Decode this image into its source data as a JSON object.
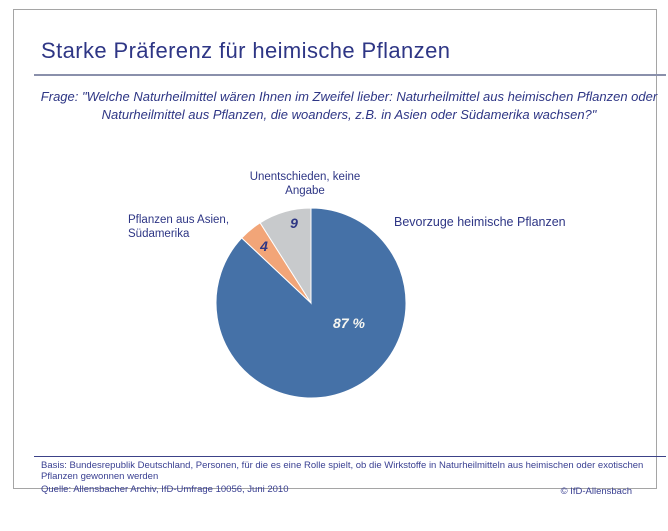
{
  "slide": {
    "title": "Starke Präferenz für heimische Pflanzen",
    "question": "Frage: \"Welche Naturheilmittel wären Ihnen im Zweifel lieber: Naturheilmittel aus heimischen Pflanzen oder Naturheilmittel aus Pflanzen, die woanders, z.B. in Asien oder Südamerika wachsen?\"",
    "footer": {
      "basis": "Basis: Bundesrepublik Deutschland, Personen, für die es eine Rolle spielt, ob die Wirkstoffe in Naturheilmitteln aus heimischen oder exotischen Pflanzen gewonnen werden",
      "source": "Quelle: Allensbacher Archiv, IfD-Umfrage 10056, Juni 2010",
      "copyright": "© IfD-Allensbach"
    }
  },
  "chart_data": {
    "type": "pie",
    "title": "Starke Präferenz für heimische Pflanzen",
    "unit": "percent",
    "total": 100,
    "start_angle_deg": 0,
    "direction": "clockwise",
    "legend_position": "callout-labels",
    "slices": [
      {
        "label": "Bevorzuge heimische Pflanzen",
        "value": 87,
        "value_display": "87 %",
        "color": "#4571A7",
        "value_color": "#F6F6F1"
      },
      {
        "label": "Pflanzen aus Asien, Südamerika",
        "value": 4,
        "value_display": "4",
        "color": "#F2A578",
        "value_color": "#2F3784"
      },
      {
        "label": "Unentschieden, keine Angabe",
        "value": 9,
        "value_display": "9",
        "color": "#C8CACC",
        "value_color": "#2F3784"
      }
    ],
    "colors": {
      "text_navy": "#2E3685",
      "frame_border": "#A5A5A5",
      "slice_separator": "#FFFFFF"
    }
  }
}
